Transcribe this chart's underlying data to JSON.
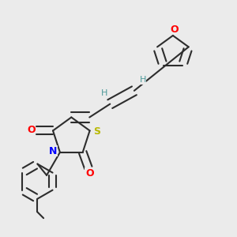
{
  "background_color": "#ebebeb",
  "bond_color": "#2d2d2d",
  "atom_colors": {
    "O": "#ff0000",
    "N": "#0000ff",
    "S": "#b8b800",
    "H": "#4d9999",
    "C": "#2d2d2d"
  },
  "figsize": [
    3.0,
    3.0
  ],
  "dpi": 100
}
